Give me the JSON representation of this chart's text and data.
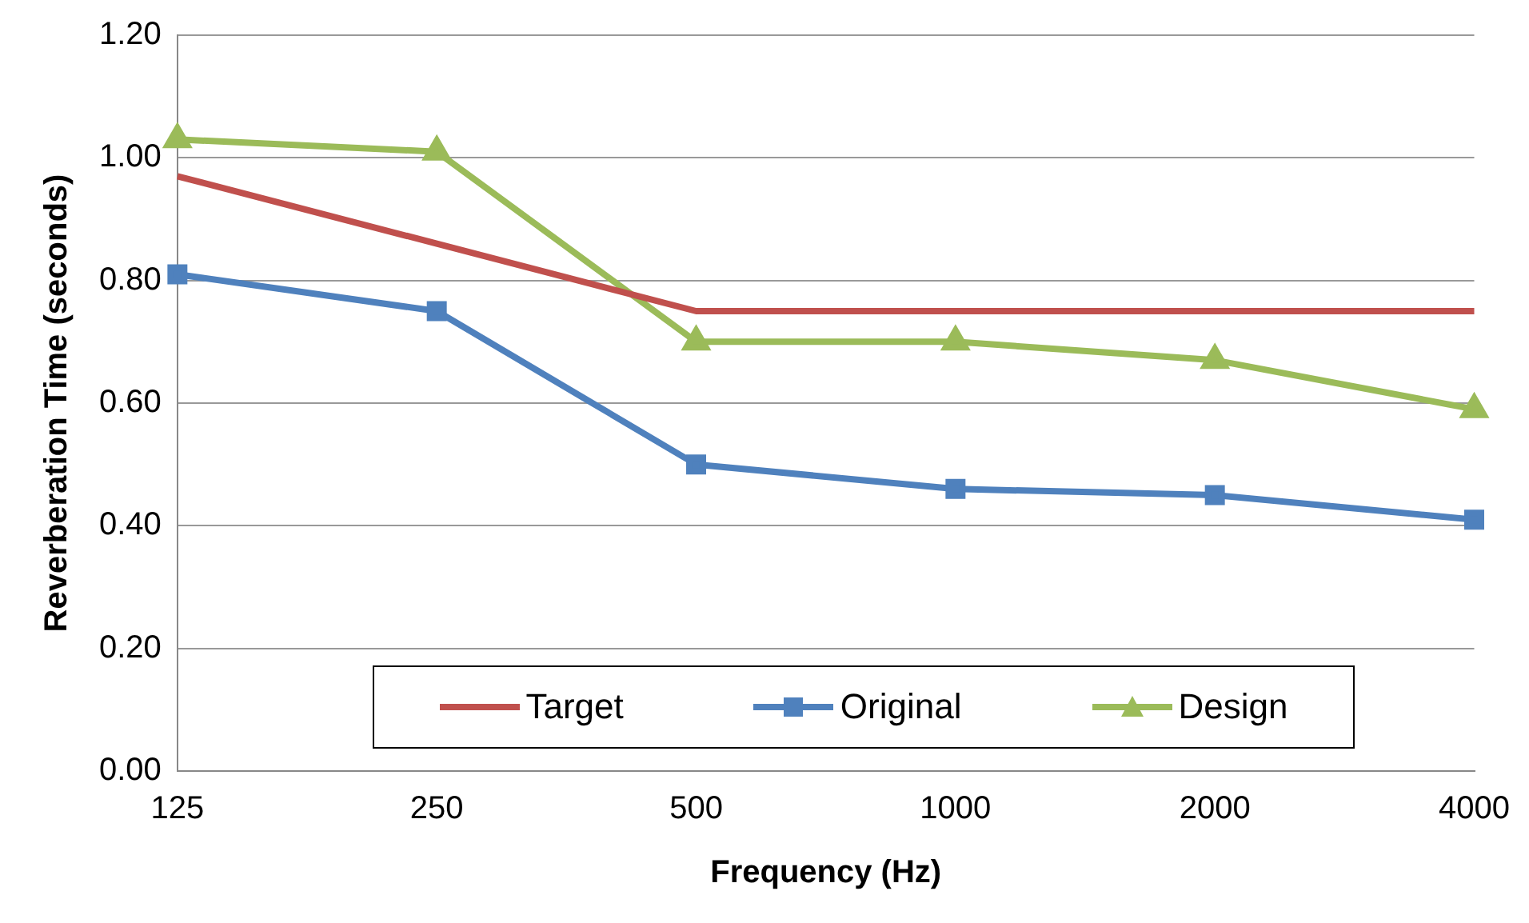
{
  "chart_data": {
    "type": "line",
    "xlabel": "Frequency (Hz)",
    "ylabel": "Reverberation Time (seconds)",
    "categories": [
      "125",
      "250",
      "500",
      "1000",
      "2000",
      "4000"
    ],
    "series": [
      {
        "name": "Target",
        "color": "#c0504d",
        "values": [
          0.97,
          0.86,
          0.75,
          0.75,
          0.75,
          0.75
        ],
        "marker": "none"
      },
      {
        "name": "Original",
        "color": "#4f81bd",
        "values": [
          0.81,
          0.75,
          0.5,
          0.46,
          0.45,
          0.41
        ],
        "marker": "square"
      },
      {
        "name": "Design",
        "color": "#9bbb59",
        "values": [
          1.03,
          1.01,
          0.7,
          0.7,
          0.67,
          0.59
        ],
        "marker": "triangle"
      }
    ],
    "ylim": [
      0,
      1.2
    ],
    "yticks": [
      {
        "value": 0,
        "label": "0.00"
      },
      {
        "value": 0.2,
        "label": "0.20"
      },
      {
        "value": 0.4,
        "label": "0.40"
      },
      {
        "value": 0.6,
        "label": "0.60"
      },
      {
        "value": 0.8,
        "label": "0.80"
      },
      {
        "value": 1.0,
        "label": "1.00"
      },
      {
        "value": 1.2,
        "label": "1.20"
      }
    ],
    "grid": "y",
    "legend": "bottom"
  }
}
